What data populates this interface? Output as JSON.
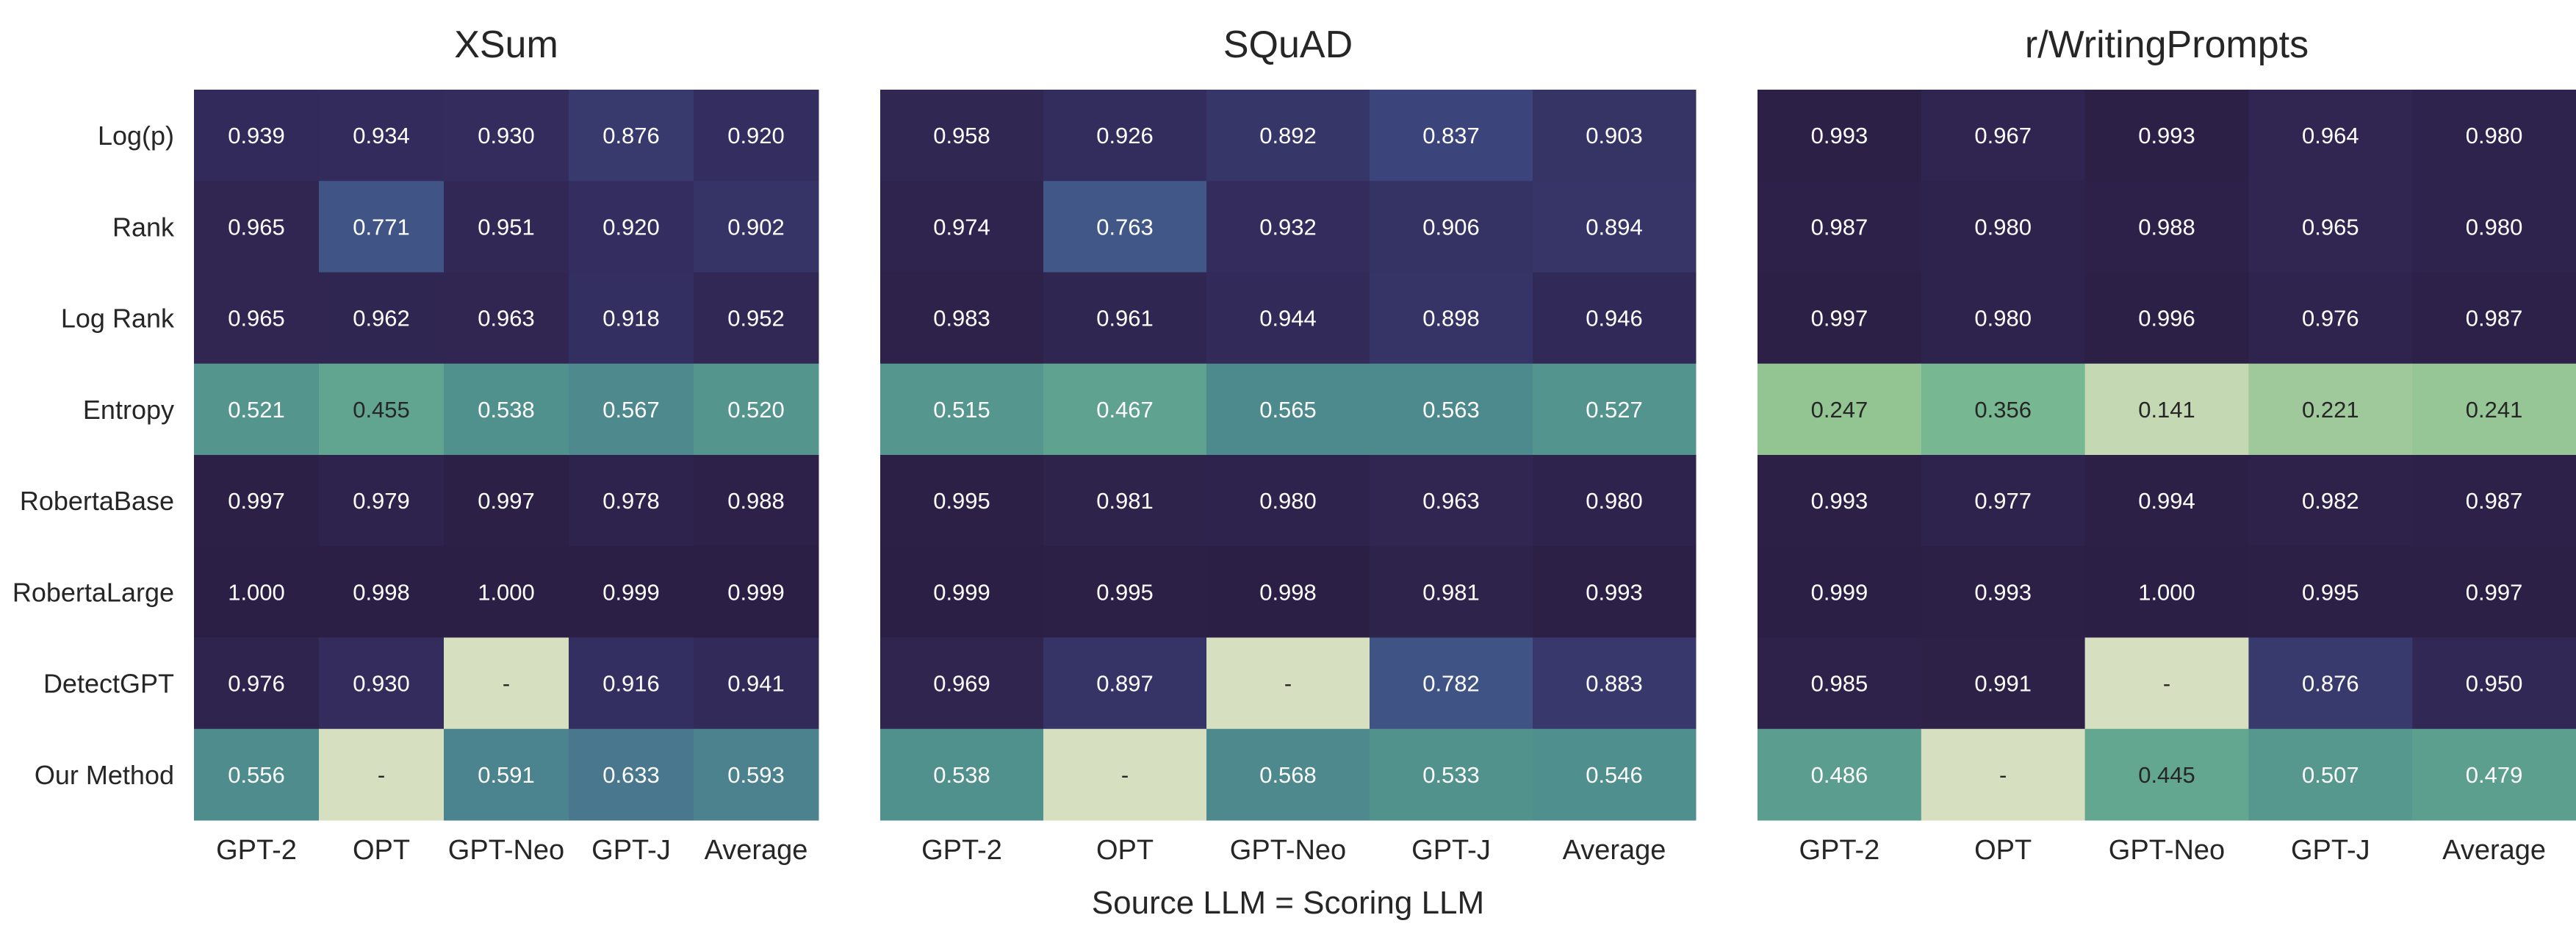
{
  "chart_data": {
    "type": "heatmap",
    "xlabel": "Source LLM = Scoring LLM",
    "rows": [
      "Log(p)",
      "Rank",
      "Log Rank",
      "Entropy",
      "RobertaBase",
      "RobertaLarge",
      "DetectGPT",
      "Our Method"
    ],
    "columns": [
      "GPT-2",
      "OPT",
      "GPT-Neo",
      "GPT-J",
      "Average"
    ],
    "missing_label": "-",
    "colormap": {
      "low": "#d6dfc0",
      "high": "#2c1f45"
    },
    "panels": [
      {
        "title": "XSum",
        "values": [
          [
            0.939,
            0.934,
            0.93,
            0.876,
            0.92
          ],
          [
            0.965,
            0.771,
            0.951,
            0.92,
            0.902
          ],
          [
            0.965,
            0.962,
            0.963,
            0.918,
            0.952
          ],
          [
            0.521,
            0.455,
            0.538,
            0.567,
            0.52
          ],
          [
            0.997,
            0.979,
            0.997,
            0.978,
            0.988
          ],
          [
            1.0,
            0.998,
            1.0,
            0.999,
            0.999
          ],
          [
            0.976,
            0.93,
            null,
            0.916,
            0.941
          ],
          [
            0.556,
            null,
            0.591,
            0.633,
            0.593
          ]
        ]
      },
      {
        "title": "SQuAD",
        "values": [
          [
            0.958,
            0.926,
            0.892,
            0.837,
            0.903
          ],
          [
            0.974,
            0.763,
            0.932,
            0.906,
            0.894
          ],
          [
            0.983,
            0.961,
            0.944,
            0.898,
            0.946
          ],
          [
            0.515,
            0.467,
            0.565,
            0.563,
            0.527
          ],
          [
            0.995,
            0.981,
            0.98,
            0.963,
            0.98
          ],
          [
            0.999,
            0.995,
            0.998,
            0.981,
            0.993
          ],
          [
            0.969,
            0.897,
            null,
            0.782,
            0.883
          ],
          [
            0.538,
            null,
            0.568,
            0.533,
            0.546
          ]
        ]
      },
      {
        "title": "r/WritingPrompts",
        "values": [
          [
            0.993,
            0.967,
            0.993,
            0.964,
            0.98
          ],
          [
            0.987,
            0.98,
            0.988,
            0.965,
            0.98
          ],
          [
            0.997,
            0.98,
            0.996,
            0.976,
            0.987
          ],
          [
            0.247,
            0.356,
            0.141,
            0.221,
            0.241
          ],
          [
            0.993,
            0.977,
            0.994,
            0.982,
            0.987
          ],
          [
            0.999,
            0.993,
            1.0,
            0.995,
            0.997
          ],
          [
            0.985,
            0.991,
            null,
            0.876,
            0.95
          ],
          [
            0.486,
            null,
            0.445,
            0.507,
            0.479
          ]
        ]
      }
    ]
  }
}
